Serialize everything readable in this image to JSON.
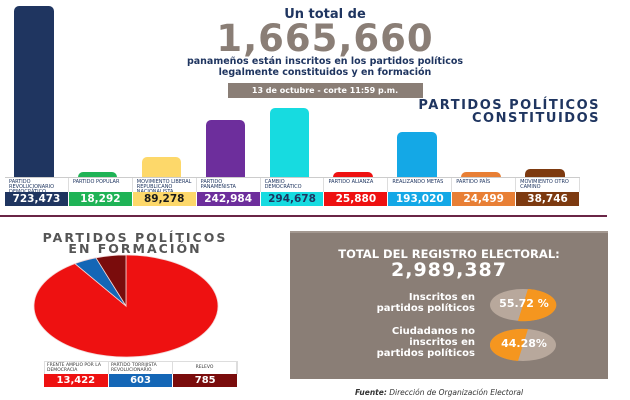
{
  "header": {
    "subtitle": "Un total de",
    "total": "1,665,660",
    "description_line1": "panameños están inscritos en los partidos políticos",
    "description_line2": "legalmente constituidos y en formación",
    "date": "13 de octubre - corte 11:59 p.m."
  },
  "constituted": {
    "title_line1": "PARTIDOS POLÍTICOS",
    "title_line2": "CONSTITUIDOS",
    "parties": [
      {
        "label": "Partido Revolucionario Democrático",
        "value": "723,473",
        "color": "#1f3560"
      },
      {
        "label": "Partido Popular",
        "value": "18,292",
        "color": "#1fb356"
      },
      {
        "label": "Movimiento Liberal Republicano Nacionalista",
        "value": "89,278",
        "color": "#fdd86a"
      },
      {
        "label": "Partido Panameñista",
        "value": "242,984",
        "color": "#6d2e9c"
      },
      {
        "label": "Cambio Democrático",
        "value": "294,678",
        "color": "#17dbe0"
      },
      {
        "label": "Partido Alianza",
        "value": "25,880",
        "color": "#ee1111"
      },
      {
        "label": "Realizando Metas",
        "value": "193,020",
        "color": "#14a8e6"
      },
      {
        "label": "Partido País",
        "value": "24,499",
        "color": "#e87f35"
      },
      {
        "label": "Movimiento Otro Camino",
        "value": "38,746",
        "color": "#7d3a10"
      }
    ]
  },
  "formation": {
    "title_line1": "PARTIDOS POLÍTICOS",
    "title_line2": "EN FORMACIÓN",
    "parties": [
      {
        "label": "Frente Amplio por la Democracia",
        "value": "13,422",
        "color": "#ee1111"
      },
      {
        "label": "Partido Torrijista Revolucionario",
        "value": "603",
        "color": "#1466b6"
      },
      {
        "label": "Relevo",
        "value": "785",
        "color": "#7a0c0c"
      }
    ]
  },
  "registry": {
    "title": "TOTAL DEL REGISTRO ELECTORAL:",
    "total": "2,989,387",
    "stats": [
      {
        "label_lines": [
          "Inscritos en",
          "partidos políticos"
        ],
        "percent": "55.72 %"
      },
      {
        "label_lines": [
          "Ciudadanos no",
          "inscritos en",
          "partidos políticos"
        ],
        "percent": "44.28%"
      }
    ]
  },
  "source": {
    "prefix": "Fuente:",
    "text": " Dirección de Organización Electoral"
  },
  "colors": {
    "navy": "#1f3560",
    "taupe": "#8a7e76",
    "orange": "#f5961f",
    "divider": "#6a2546"
  },
  "chart_data": [
    {
      "type": "bar",
      "title": "PARTIDOS POLÍTICOS CONSTITUIDOS",
      "categories": [
        "Partido Revolucionario Democrático",
        "Partido Popular",
        "Movimiento Liberal Republicano Nacionalista",
        "Partido Panameñista",
        "Cambio Democrático",
        "Partido Alianza",
        "Realizando Metas",
        "Partido País",
        "Movimiento Otro Camino"
      ],
      "values": [
        723473,
        18292,
        89278,
        242984,
        294678,
        25880,
        193020,
        24499,
        38746
      ],
      "xlabel": "",
      "ylabel": "",
      "grid": false
    },
    {
      "type": "pie",
      "title": "PARTIDOS POLÍTICOS EN FORMACIÓN",
      "categories": [
        "Frente Amplio por la Democracia",
        "Partido Torrijista Revolucionario",
        "Relevo"
      ],
      "values": [
        13422,
        603,
        785
      ]
    },
    {
      "type": "pie",
      "title": "TOTAL DEL REGISTRO ELECTORAL: 2,989,387",
      "categories": [
        "Inscritos en partidos políticos",
        "Ciudadanos no inscritos en partidos políticos"
      ],
      "values": [
        55.72,
        44.28
      ]
    }
  ]
}
